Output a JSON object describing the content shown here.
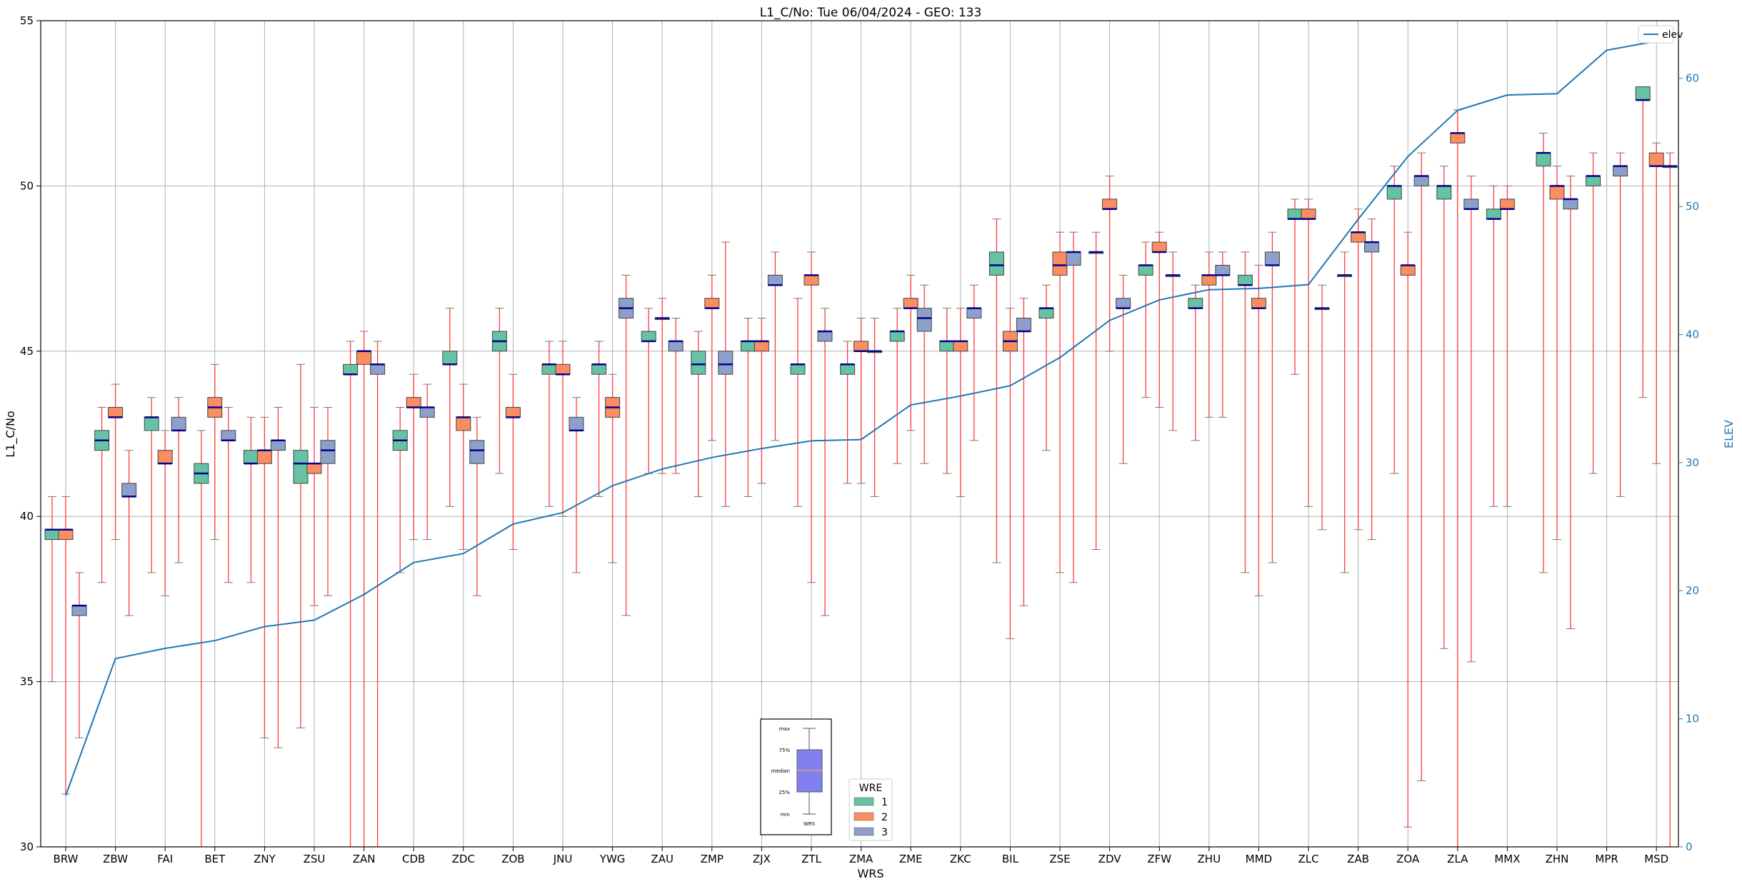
{
  "chart_data": {
    "type": "box",
    "title": "L1_C/No: Tue 06/04/2024 - GEO: 133",
    "xlabel": "WRS",
    "ylabel": "L1_C/No",
    "ylabel_right": "ELEV",
    "ylim": [
      30,
      55
    ],
    "ylim_right": [
      0,
      64.5
    ],
    "yticks": [
      30,
      35,
      40,
      45,
      50,
      55
    ],
    "yticks_right": [
      0,
      10,
      20,
      30,
      40,
      50,
      60
    ],
    "grid": true,
    "categories": [
      "BRW",
      "ZBW",
      "FAI",
      "BET",
      "ZNY",
      "ZSU",
      "ZAN",
      "CDB",
      "ZDC",
      "ZOB",
      "JNU",
      "YWG",
      "ZAU",
      "ZMP",
      "ZJX",
      "ZTL",
      "ZMA",
      "ZME",
      "ZKC",
      "BIL",
      "ZSE",
      "ZDV",
      "ZFW",
      "ZHU",
      "MMD",
      "ZLC",
      "ZAB",
      "ZOA",
      "ZLA",
      "MMX",
      "ZHN",
      "MPR",
      "MSD"
    ],
    "wre_legend_title": "WRE",
    "wre_colors": {
      "1": "#66c2a5",
      "2": "#fc8d62",
      "3": "#8da0cb"
    },
    "boxes": [
      {
        "wrs": "BRW",
        "wre": 1,
        "min": 35.0,
        "q1": 39.3,
        "median": 39.6,
        "q3": 39.6,
        "max": 40.6
      },
      {
        "wrs": "BRW",
        "wre": 2,
        "min": 31.6,
        "q1": 39.3,
        "median": 39.6,
        "q3": 39.6,
        "max": 40.6
      },
      {
        "wrs": "BRW",
        "wre": 3,
        "min": 33.3,
        "q1": 37.0,
        "median": 37.3,
        "q3": 37.3,
        "max": 38.3
      },
      {
        "wrs": "ZBW",
        "wre": 1,
        "min": 38.0,
        "q1": 42.0,
        "median": 42.3,
        "q3": 42.6,
        "max": 43.3
      },
      {
        "wrs": "ZBW",
        "wre": 2,
        "min": 39.3,
        "q1": 43.0,
        "median": 43.0,
        "q3": 43.3,
        "max": 44.0
      },
      {
        "wrs": "ZBW",
        "wre": 3,
        "min": 37.0,
        "q1": 40.6,
        "median": 40.6,
        "q3": 41.0,
        "max": 42.0
      },
      {
        "wrs": "FAI",
        "wre": 1,
        "min": 38.3,
        "q1": 42.6,
        "median": 43.0,
        "q3": 43.0,
        "max": 43.6
      },
      {
        "wrs": "FAI",
        "wre": 2,
        "min": 37.6,
        "q1": 41.6,
        "median": 41.6,
        "q3": 42.0,
        "max": 42.6
      },
      {
        "wrs": "FAI",
        "wre": 3,
        "min": 38.6,
        "q1": 42.6,
        "median": 42.6,
        "q3": 43.0,
        "max": 43.6
      },
      {
        "wrs": "BET",
        "wre": 1,
        "min": 30.0,
        "q1": 41.0,
        "median": 41.3,
        "q3": 41.6,
        "max": 42.6
      },
      {
        "wrs": "BET",
        "wre": 2,
        "min": 39.3,
        "q1": 43.0,
        "median": 43.3,
        "q3": 43.6,
        "max": 44.6
      },
      {
        "wrs": "BET",
        "wre": 3,
        "min": 38.0,
        "q1": 42.3,
        "median": 42.3,
        "q3": 42.6,
        "max": 43.3
      },
      {
        "wrs": "ZNY",
        "wre": 1,
        "min": 38.0,
        "q1": 41.6,
        "median": 41.6,
        "q3": 42.0,
        "max": 43.0
      },
      {
        "wrs": "ZNY",
        "wre": 2,
        "min": 33.3,
        "q1": 41.6,
        "median": 42.0,
        "q3": 42.0,
        "max": 43.0
      },
      {
        "wrs": "ZNY",
        "wre": 3,
        "min": 33.0,
        "q1": 42.0,
        "median": 42.3,
        "q3": 42.3,
        "max": 43.3
      },
      {
        "wrs": "ZSU",
        "wre": 1,
        "min": 33.6,
        "q1": 41.0,
        "median": 41.6,
        "q3": 42.0,
        "max": 44.6
      },
      {
        "wrs": "ZSU",
        "wre": 2,
        "min": 37.3,
        "q1": 41.3,
        "median": 41.6,
        "q3": 41.6,
        "max": 43.3
      },
      {
        "wrs": "ZSU",
        "wre": 3,
        "min": 37.6,
        "q1": 41.6,
        "median": 42.0,
        "q3": 42.3,
        "max": 43.3
      },
      {
        "wrs": "ZAN",
        "wre": 1,
        "min": 30.0,
        "q1": 44.3,
        "median": 44.3,
        "q3": 44.6,
        "max": 45.3
      },
      {
        "wrs": "ZAN",
        "wre": 2,
        "min": 30.0,
        "q1": 44.6,
        "median": 45.0,
        "q3": 45.0,
        "max": 45.6
      },
      {
        "wrs": "ZAN",
        "wre": 3,
        "min": 30.0,
        "q1": 44.3,
        "median": 44.6,
        "q3": 44.6,
        "max": 45.3
      },
      {
        "wrs": "CDB",
        "wre": 1,
        "min": 38.3,
        "q1": 42.0,
        "median": 42.3,
        "q3": 42.6,
        "max": 43.3
      },
      {
        "wrs": "CDB",
        "wre": 2,
        "min": 39.3,
        "q1": 43.3,
        "median": 43.3,
        "q3": 43.6,
        "max": 44.3
      },
      {
        "wrs": "CDB",
        "wre": 3,
        "min": 39.3,
        "q1": 43.0,
        "median": 43.3,
        "q3": 43.3,
        "max": 44.0
      },
      {
        "wrs": "ZDC",
        "wre": 1,
        "min": 40.3,
        "q1": 44.6,
        "median": 44.6,
        "q3": 45.0,
        "max": 46.3
      },
      {
        "wrs": "ZDC",
        "wre": 2,
        "min": 39.0,
        "q1": 42.6,
        "median": 43.0,
        "q3": 43.0,
        "max": 44.0
      },
      {
        "wrs": "ZDC",
        "wre": 3,
        "min": 37.6,
        "q1": 41.6,
        "median": 42.0,
        "q3": 42.3,
        "max": 43.0
      },
      {
        "wrs": "ZOB",
        "wre": 1,
        "min": 41.3,
        "q1": 45.0,
        "median": 45.3,
        "q3": 45.6,
        "max": 46.3
      },
      {
        "wrs": "ZOB",
        "wre": 2,
        "min": 39.0,
        "q1": 43.0,
        "median": 43.0,
        "q3": 43.3,
        "max": 44.3
      },
      {
        "wrs": "JNU",
        "wre": 1,
        "min": 40.3,
        "q1": 44.3,
        "median": 44.6,
        "q3": 44.6,
        "max": 45.3
      },
      {
        "wrs": "JNU",
        "wre": 2,
        "min": 40.0,
        "q1": 44.3,
        "median": 44.3,
        "q3": 44.6,
        "max": 45.3
      },
      {
        "wrs": "JNU",
        "wre": 3,
        "min": 38.3,
        "q1": 42.6,
        "median": 42.6,
        "q3": 43.0,
        "max": 43.6
      },
      {
        "wrs": "YWG",
        "wre": 1,
        "min": 40.6,
        "q1": 44.3,
        "median": 44.6,
        "q3": 44.6,
        "max": 45.3
      },
      {
        "wrs": "YWG",
        "wre": 2,
        "min": 38.6,
        "q1": 43.0,
        "median": 43.3,
        "q3": 43.6,
        "max": 44.3
      },
      {
        "wrs": "YWG",
        "wre": 3,
        "min": 37.0,
        "q1": 46.0,
        "median": 46.3,
        "q3": 46.6,
        "max": 47.3
      },
      {
        "wrs": "ZAU",
        "wre": 1,
        "min": 41.3,
        "q1": 45.3,
        "median": 45.3,
        "q3": 45.6,
        "max": 46.3
      },
      {
        "wrs": "ZAU",
        "wre": 2,
        "min": 41.3,
        "q1": 46.0,
        "median": 46.0,
        "q3": 46.0,
        "max": 46.6
      },
      {
        "wrs": "ZAU",
        "wre": 3,
        "min": 41.3,
        "q1": 45.0,
        "median": 45.3,
        "q3": 45.3,
        "max": 46.0
      },
      {
        "wrs": "ZMP",
        "wre": 1,
        "min": 40.6,
        "q1": 44.3,
        "median": 44.6,
        "q3": 45.0,
        "max": 45.6
      },
      {
        "wrs": "ZMP",
        "wre": 2,
        "min": 42.3,
        "q1": 46.3,
        "median": 46.3,
        "q3": 46.6,
        "max": 47.3
      },
      {
        "wrs": "ZMP",
        "wre": 3,
        "min": 40.3,
        "q1": 44.3,
        "median": 44.6,
        "q3": 45.0,
        "max": 48.3
      },
      {
        "wrs": "ZJX",
        "wre": 1,
        "min": 40.6,
        "q1": 45.0,
        "median": 45.3,
        "q3": 45.3,
        "max": 46.0
      },
      {
        "wrs": "ZJX",
        "wre": 2,
        "min": 41.0,
        "q1": 45.0,
        "median": 45.3,
        "q3": 45.3,
        "max": 46.0
      },
      {
        "wrs": "ZJX",
        "wre": 3,
        "min": 42.3,
        "q1": 47.0,
        "median": 47.0,
        "q3": 47.3,
        "max": 48.0
      },
      {
        "wrs": "ZTL",
        "wre": 1,
        "min": 40.3,
        "q1": 44.3,
        "median": 44.6,
        "q3": 44.6,
        "max": 46.6
      },
      {
        "wrs": "ZTL",
        "wre": 2,
        "min": 38.0,
        "q1": 47.0,
        "median": 47.3,
        "q3": 47.3,
        "max": 48.0
      },
      {
        "wrs": "ZTL",
        "wre": 3,
        "min": 37.0,
        "q1": 45.3,
        "median": 45.6,
        "q3": 45.6,
        "max": 46.3
      },
      {
        "wrs": "ZMA",
        "wre": 1,
        "min": 41.0,
        "q1": 44.3,
        "median": 44.6,
        "q3": 44.6,
        "max": 45.3
      },
      {
        "wrs": "ZMA",
        "wre": 2,
        "min": 41.0,
        "q1": 45.0,
        "median": 45.0,
        "q3": 45.3,
        "max": 46.0
      },
      {
        "wrs": "ZMA",
        "wre": 3,
        "min": 40.6,
        "q1": 45.0,
        "median": 45.0,
        "q3": 45.0,
        "max": 46.0
      },
      {
        "wrs": "ZME",
        "wre": 1,
        "min": 41.6,
        "q1": 45.3,
        "median": 45.6,
        "q3": 45.6,
        "max": 46.3
      },
      {
        "wrs": "ZME",
        "wre": 2,
        "min": 42.6,
        "q1": 46.3,
        "median": 46.3,
        "q3": 46.6,
        "max": 47.3
      },
      {
        "wrs": "ZME",
        "wre": 3,
        "min": 41.6,
        "q1": 45.6,
        "median": 46.0,
        "q3": 46.3,
        "max": 47.0
      },
      {
        "wrs": "ZKC",
        "wre": 1,
        "min": 41.3,
        "q1": 45.0,
        "median": 45.3,
        "q3": 45.3,
        "max": 46.3
      },
      {
        "wrs": "ZKC",
        "wre": 2,
        "min": 40.6,
        "q1": 45.0,
        "median": 45.3,
        "q3": 45.3,
        "max": 46.3
      },
      {
        "wrs": "ZKC",
        "wre": 3,
        "min": 42.3,
        "q1": 46.0,
        "median": 46.3,
        "q3": 46.3,
        "max": 47.0
      },
      {
        "wrs": "BIL",
        "wre": 1,
        "min": 38.6,
        "q1": 47.3,
        "median": 47.6,
        "q3": 48.0,
        "max": 49.0
      },
      {
        "wrs": "BIL",
        "wre": 2,
        "min": 36.3,
        "q1": 45.0,
        "median": 45.3,
        "q3": 45.6,
        "max": 46.3
      },
      {
        "wrs": "BIL",
        "wre": 3,
        "min": 37.3,
        "q1": 45.6,
        "median": 45.6,
        "q3": 46.0,
        "max": 46.6
      },
      {
        "wrs": "ZSE",
        "wre": 1,
        "min": 42.0,
        "q1": 46.0,
        "median": 46.3,
        "q3": 46.3,
        "max": 47.0
      },
      {
        "wrs": "ZSE",
        "wre": 2,
        "min": 38.3,
        "q1": 47.3,
        "median": 47.6,
        "q3": 48.0,
        "max": 48.6
      },
      {
        "wrs": "ZSE",
        "wre": 3,
        "min": 38.0,
        "q1": 47.6,
        "median": 48.0,
        "q3": 48.0,
        "max": 48.6
      },
      {
        "wrs": "ZDV",
        "wre": 1,
        "min": 39.0,
        "q1": 48.0,
        "median": 48.0,
        "q3": 48.0,
        "max": 48.6
      },
      {
        "wrs": "ZDV",
        "wre": 2,
        "min": 45.0,
        "q1": 49.3,
        "median": 49.3,
        "q3": 49.6,
        "max": 50.3
      },
      {
        "wrs": "ZDV",
        "wre": 3,
        "min": 41.6,
        "q1": 46.3,
        "median": 46.3,
        "q3": 46.6,
        "max": 47.3
      },
      {
        "wrs": "ZFW",
        "wre": 1,
        "min": 43.6,
        "q1": 47.3,
        "median": 47.6,
        "q3": 47.6,
        "max": 48.3
      },
      {
        "wrs": "ZFW",
        "wre": 2,
        "min": 43.3,
        "q1": 48.0,
        "median": 48.0,
        "q3": 48.3,
        "max": 48.6
      },
      {
        "wrs": "ZFW",
        "wre": 3,
        "min": 42.6,
        "q1": 47.3,
        "median": 47.3,
        "q3": 47.3,
        "max": 48.0
      },
      {
        "wrs": "ZHU",
        "wre": 1,
        "min": 42.3,
        "q1": 46.3,
        "median": 46.3,
        "q3": 46.6,
        "max": 47.0
      },
      {
        "wrs": "ZHU",
        "wre": 2,
        "min": 43.0,
        "q1": 47.0,
        "median": 47.3,
        "q3": 47.3,
        "max": 48.0
      },
      {
        "wrs": "ZHU",
        "wre": 3,
        "min": 43.0,
        "q1": 47.3,
        "median": 47.3,
        "q3": 47.6,
        "max": 48.0
      },
      {
        "wrs": "MMD",
        "wre": 1,
        "min": 38.3,
        "q1": 47.0,
        "median": 47.0,
        "q3": 47.3,
        "max": 48.0
      },
      {
        "wrs": "MMD",
        "wre": 2,
        "min": 37.6,
        "q1": 46.3,
        "median": 46.3,
        "q3": 46.6,
        "max": 47.6
      },
      {
        "wrs": "MMD",
        "wre": 3,
        "min": 38.6,
        "q1": 47.6,
        "median": 47.6,
        "q3": 48.0,
        "max": 48.6
      },
      {
        "wrs": "ZLC",
        "wre": 1,
        "min": 44.3,
        "q1": 49.0,
        "median": 49.0,
        "q3": 49.3,
        "max": 49.6
      },
      {
        "wrs": "ZLC",
        "wre": 2,
        "min": 40.3,
        "q1": 49.0,
        "median": 49.0,
        "q3": 49.3,
        "max": 49.6
      },
      {
        "wrs": "ZLC",
        "wre": 3,
        "min": 39.6,
        "q1": 46.3,
        "median": 46.3,
        "q3": 46.3,
        "max": 47.0
      },
      {
        "wrs": "ZAB",
        "wre": 1,
        "min": 38.3,
        "q1": 47.3,
        "median": 47.3,
        "q3": 47.3,
        "max": 48.0
      },
      {
        "wrs": "ZAB",
        "wre": 2,
        "min": 39.6,
        "q1": 48.3,
        "median": 48.6,
        "q3": 48.6,
        "max": 49.3
      },
      {
        "wrs": "ZAB",
        "wre": 3,
        "min": 39.3,
        "q1": 48.0,
        "median": 48.3,
        "q3": 48.3,
        "max": 49.0
      },
      {
        "wrs": "ZOA",
        "wre": 1,
        "min": 41.3,
        "q1": 49.6,
        "median": 50.0,
        "q3": 50.0,
        "max": 50.6
      },
      {
        "wrs": "ZOA",
        "wre": 2,
        "min": 30.6,
        "q1": 47.3,
        "median": 47.6,
        "q3": 47.6,
        "max": 48.6
      },
      {
        "wrs": "ZOA",
        "wre": 3,
        "min": 32.0,
        "q1": 50.0,
        "median": 50.3,
        "q3": 50.3,
        "max": 51.0
      },
      {
        "wrs": "ZLA",
        "wre": 1,
        "min": 36.0,
        "q1": 49.6,
        "median": 50.0,
        "q3": 50.0,
        "max": 50.6
      },
      {
        "wrs": "ZLA",
        "wre": 2,
        "min": 30.0,
        "q1": 51.3,
        "median": 51.6,
        "q3": 51.6,
        "max": 52.3
      },
      {
        "wrs": "ZLA",
        "wre": 3,
        "min": 35.6,
        "q1": 49.3,
        "median": 49.3,
        "q3": 49.6,
        "max": 50.3
      },
      {
        "wrs": "MMX",
        "wre": 1,
        "min": 40.3,
        "q1": 49.0,
        "median": 49.0,
        "q3": 49.3,
        "max": 50.0
      },
      {
        "wrs": "MMX",
        "wre": 2,
        "min": 40.3,
        "q1": 49.3,
        "median": 49.3,
        "q3": 49.6,
        "max": 50.0
      },
      {
        "wrs": "ZHN",
        "wre": 1,
        "min": 38.3,
        "q1": 50.6,
        "median": 51.0,
        "q3": 51.0,
        "max": 51.6
      },
      {
        "wrs": "ZHN",
        "wre": 2,
        "min": 39.3,
        "q1": 49.6,
        "median": 50.0,
        "q3": 50.0,
        "max": 50.6
      },
      {
        "wrs": "ZHN",
        "wre": 3,
        "min": 36.6,
        "q1": 49.3,
        "median": 49.6,
        "q3": 49.6,
        "max": 50.3
      },
      {
        "wrs": "MPR",
        "wre": 1,
        "min": 41.3,
        "q1": 50.0,
        "median": 50.3,
        "q3": 50.3,
        "max": 51.0
      },
      {
        "wrs": "MPR",
        "wre": 3,
        "min": 40.6,
        "q1": 50.3,
        "median": 50.6,
        "q3": 50.6,
        "max": 51.0
      },
      {
        "wrs": "MSD",
        "wre": 1,
        "min": 43.6,
        "q1": 52.6,
        "median": 52.6,
        "q3": 53.0,
        "max": 53.0
      },
      {
        "wrs": "MSD",
        "wre": 2,
        "min": 41.6,
        "q1": 50.6,
        "median": 50.6,
        "q3": 51.0,
        "max": 51.3
      },
      {
        "wrs": "MSD",
        "wre": 3,
        "min": 30.0,
        "q1": 50.6,
        "median": 50.6,
        "q3": 50.6,
        "max": 51.0
      }
    ],
    "elev_series": {
      "name": "elev",
      "values": [
        4,
        14.7,
        15.5,
        16.1,
        17.2,
        17.7,
        19.7,
        22.2,
        22.9,
        25.2,
        26.1,
        28.2,
        29.5,
        30.4,
        31.1,
        31.7,
        31.8,
        34.5,
        35.2,
        36.0,
        38.2,
        41.1,
        42.7,
        43.5,
        43.6,
        43.9,
        49.0,
        53.9,
        57.5,
        58.7,
        58.8,
        62.2,
        62.9
      ]
    },
    "elev_legend_label": "elev",
    "inset_key": {
      "labels": [
        "max",
        "75%",
        "median",
        "25%",
        "min"
      ],
      "caption": "WRS"
    },
    "wre_legend": [
      {
        "key": "1",
        "label": "1"
      },
      {
        "key": "2",
        "label": "2"
      },
      {
        "key": "3",
        "label": "3"
      }
    ]
  }
}
